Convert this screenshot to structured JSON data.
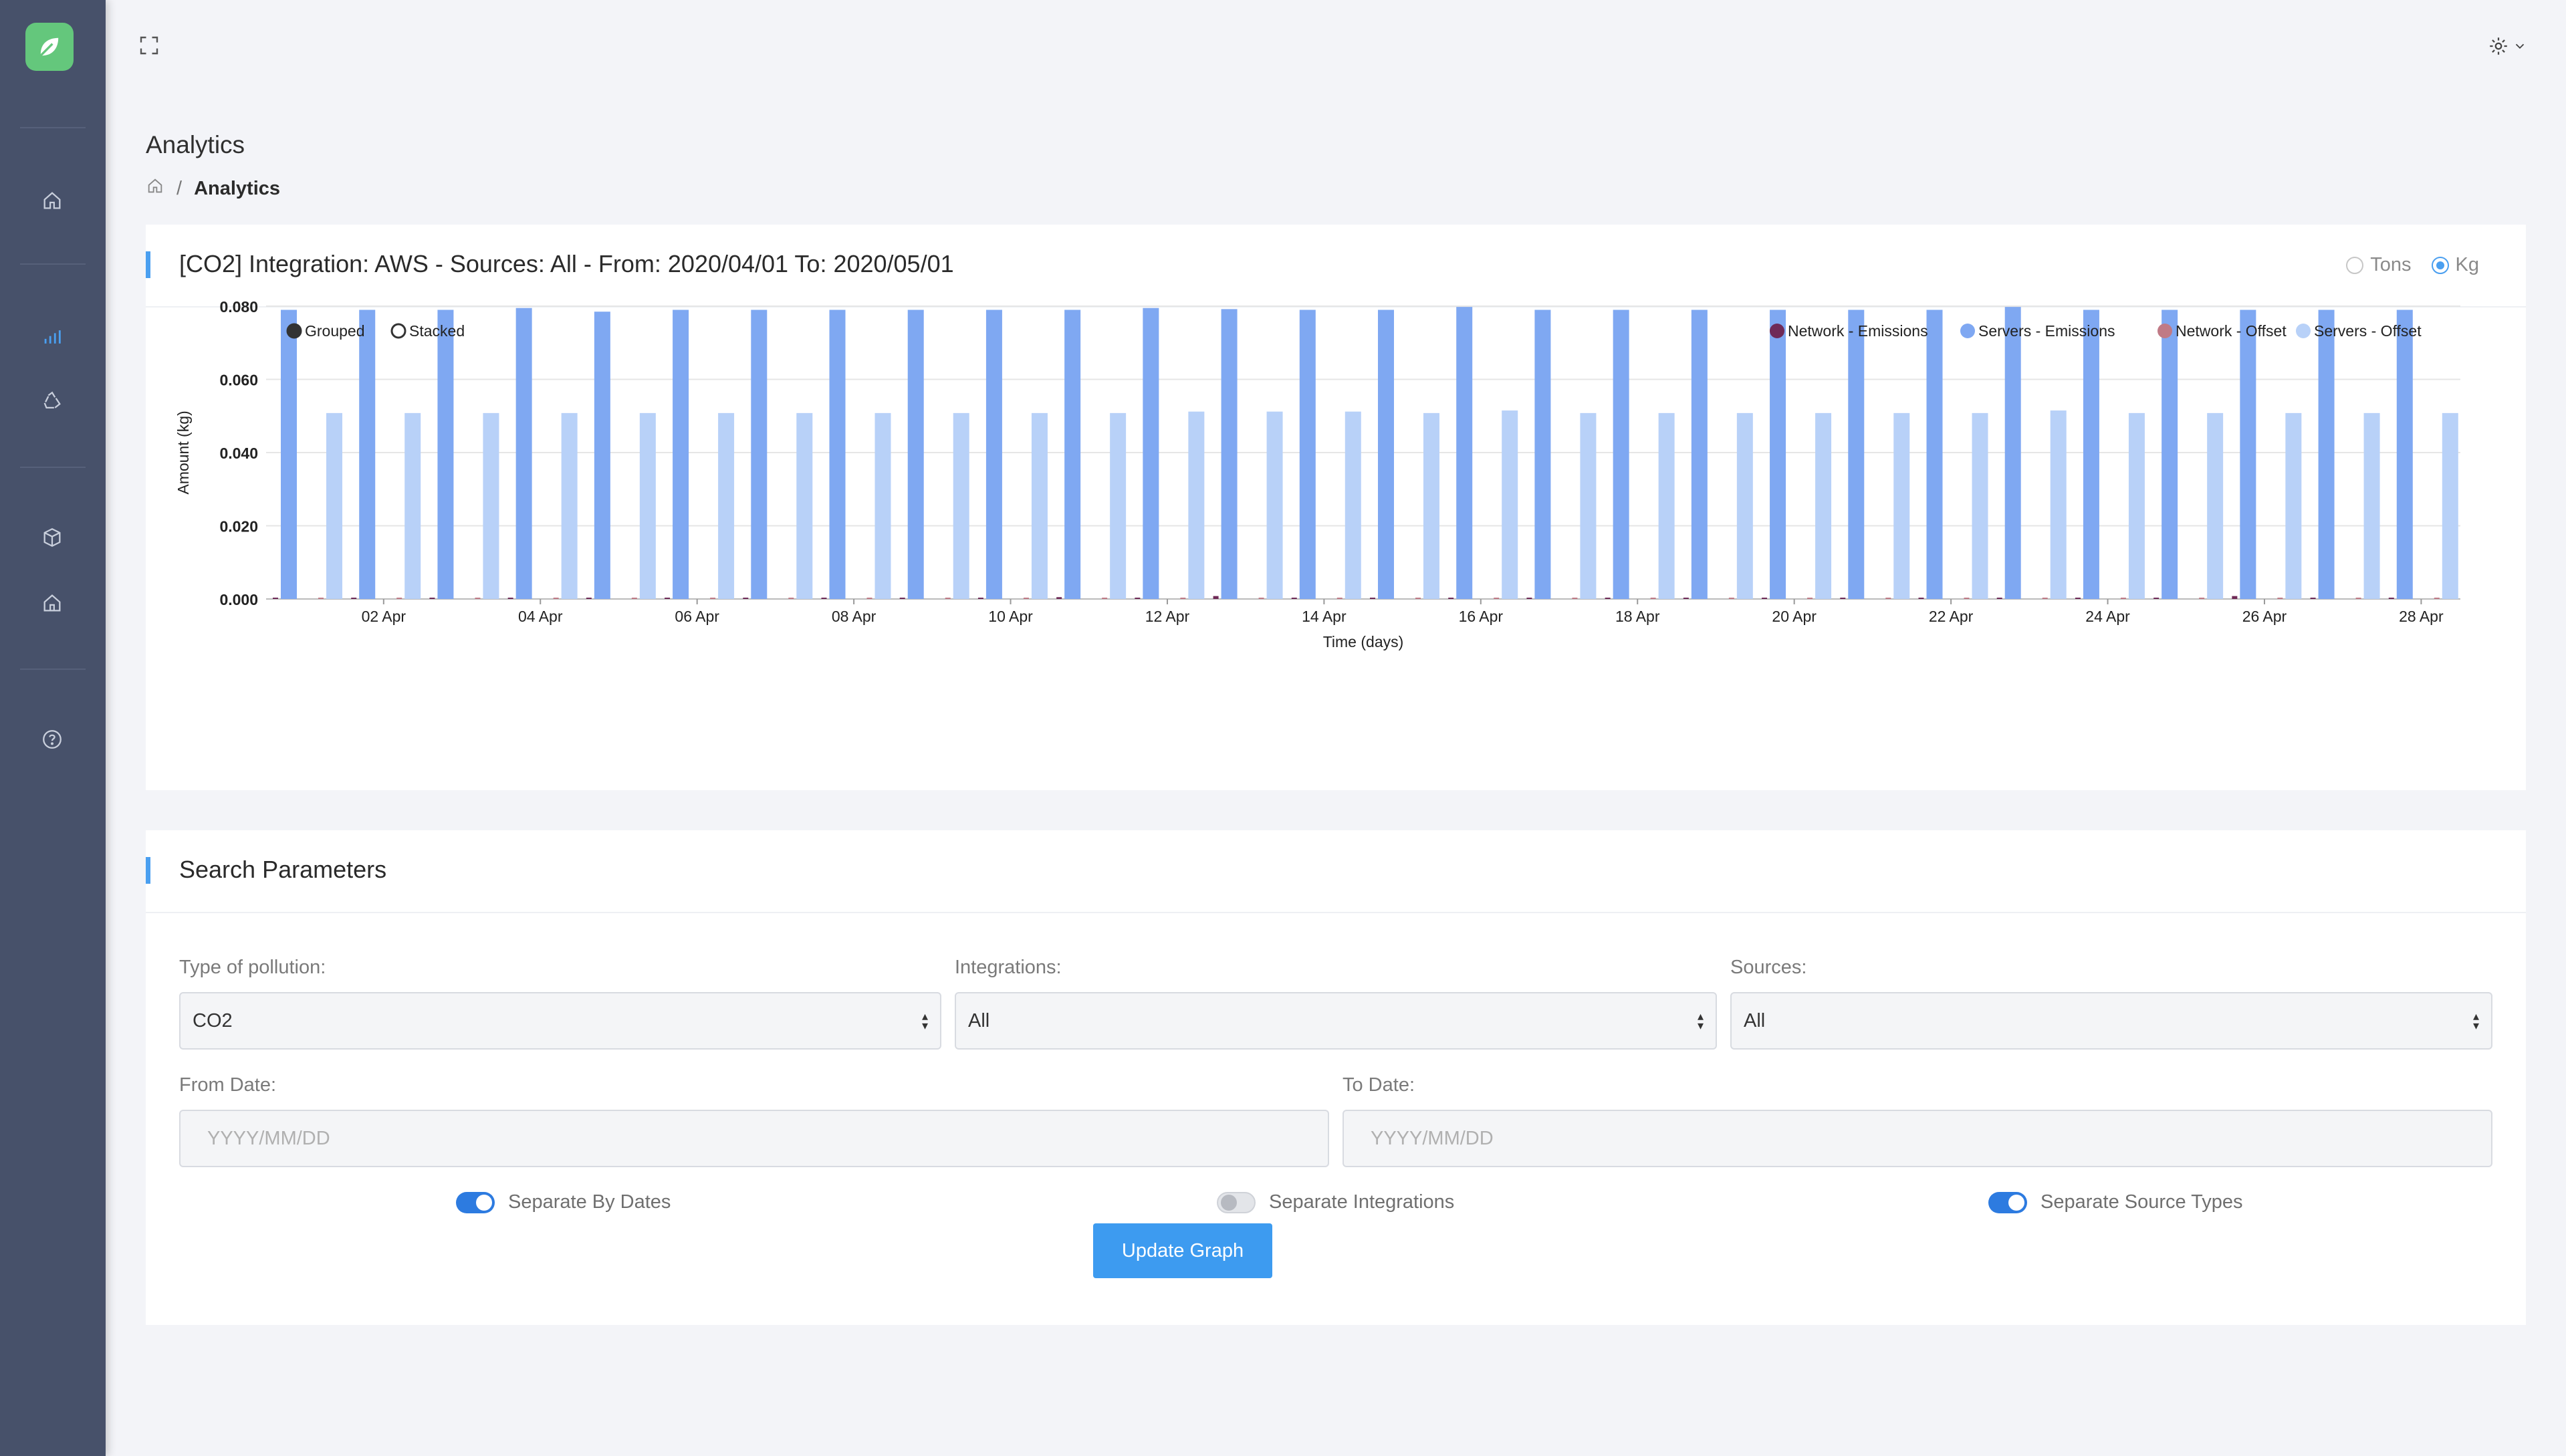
{
  "colors": {
    "sidebar_bg": "#47516a",
    "accent": "#4a9ff0",
    "logo": "#64c77c",
    "network_emissions": "#6f2a57",
    "servers_emissions": "#7fa8f2",
    "network_offset": "#c07a86",
    "servers_offset": "#b8d1f8"
  },
  "sidebar": {
    "items": [
      {
        "icon": "home-icon"
      },
      {
        "icon": "bar-chart-icon",
        "active": true
      },
      {
        "icon": "recycle-icon"
      },
      {
        "icon": "cube-icon"
      },
      {
        "icon": "building-icon"
      },
      {
        "icon": "help-icon"
      }
    ]
  },
  "header": {
    "page_title": "Analytics",
    "breadcrumb_current": "Analytics",
    "breadcrumb_separator": "/"
  },
  "chart_card": {
    "title": "[CO2] Integration: AWS - Sources: All - From: 2020/04/01 To: 2020/05/01",
    "units": [
      {
        "label": "Tons",
        "selected": false
      },
      {
        "label": "Kg",
        "selected": true
      }
    ],
    "modes": [
      {
        "label": "Grouped",
        "selected": true
      },
      {
        "label": "Stacked",
        "selected": false
      }
    ]
  },
  "chart_data": {
    "type": "bar",
    "xlabel": "Time (days)",
    "ylabel": "Amount (kg)",
    "ylim": [
      0,
      0.08
    ],
    "yticks": [
      "0.000",
      "0.020",
      "0.040",
      "0.060",
      "0.080"
    ],
    "xtick_labels": [
      "02 Apr",
      "04 Apr",
      "06 Apr",
      "08 Apr",
      "10 Apr",
      "12 Apr",
      "14 Apr",
      "16 Apr",
      "18 Apr",
      "20 Apr",
      "22 Apr",
      "24 Apr",
      "26 Apr",
      "28 Apr"
    ],
    "grid": true,
    "legend_position": "top-right",
    "categories": [
      "01 Apr",
      "02 Apr",
      "03 Apr",
      "04 Apr",
      "05 Apr",
      "06 Apr",
      "07 Apr",
      "08 Apr",
      "09 Apr",
      "10 Apr",
      "11 Apr",
      "12 Apr",
      "13 Apr",
      "14 Apr",
      "15 Apr",
      "16 Apr",
      "17 Apr",
      "18 Apr",
      "19 Apr",
      "20 Apr",
      "21 Apr",
      "22 Apr",
      "23 Apr",
      "24 Apr",
      "25 Apr",
      "26 Apr",
      "27 Apr",
      "28 Apr"
    ],
    "series": [
      {
        "name": "Network - Emissions",
        "color": "#6f2a57",
        "values": [
          0.0003,
          0.0003,
          0.0003,
          0.0003,
          0.0003,
          0.0003,
          0.0003,
          0.0003,
          0.0003,
          0.0003,
          0.0005,
          0.0003,
          0.0008,
          0.0003,
          0.0003,
          0.0003,
          0.0003,
          0.0003,
          0.0003,
          0.0003,
          0.0003,
          0.0003,
          0.0003,
          0.0003,
          0.0003,
          0.0008,
          0.0003,
          0.0003
        ]
      },
      {
        "name": "Servers - Emissions",
        "color": "#7fa8f2",
        "values": [
          0.079,
          0.079,
          0.079,
          0.0795,
          0.0785,
          0.079,
          0.079,
          0.079,
          0.079,
          0.079,
          0.079,
          0.0795,
          0.0792,
          0.079,
          0.079,
          0.0798,
          0.079,
          0.079,
          0.079,
          0.079,
          0.079,
          0.079,
          0.0798,
          0.079,
          0.079,
          0.079,
          0.079,
          0.079
        ]
      },
      {
        "name": "Network - Offset",
        "color": "#c07a86",
        "values": [
          0.0002,
          0.0002,
          0.0002,
          0.0002,
          0.0002,
          0.0002,
          0.0002,
          0.0002,
          0.0002,
          0.0002,
          0.0002,
          0.0002,
          0.0002,
          0.0002,
          0.0002,
          0.0002,
          0.0002,
          0.0002,
          0.0002,
          0.0002,
          0.0002,
          0.0002,
          0.0002,
          0.0002,
          0.0002,
          0.0002,
          0.0002,
          0.0002
        ]
      },
      {
        "name": "Servers - Offset",
        "color": "#b8d1f8",
        "values": [
          0.0508,
          0.0508,
          0.0508,
          0.0508,
          0.0508,
          0.0508,
          0.0508,
          0.0508,
          0.0508,
          0.0508,
          0.0508,
          0.0512,
          0.0512,
          0.0512,
          0.0508,
          0.0515,
          0.0508,
          0.0508,
          0.0508,
          0.0508,
          0.0508,
          0.0508,
          0.0515,
          0.0508,
          0.0508,
          0.0508,
          0.0508,
          0.0508
        ]
      }
    ]
  },
  "search": {
    "title": "Search Parameters",
    "pollution_label": "Type of pollution:",
    "pollution_value": "CO2",
    "integrations_label": "Integrations:",
    "integrations_value": "All",
    "sources_label": "Sources:",
    "sources_value": "All",
    "from_label": "From Date:",
    "from_placeholder": "YYYY/MM/DD",
    "to_label": "To Date:",
    "to_placeholder": "YYYY/MM/DD",
    "toggles": [
      {
        "label": "Separate By Dates",
        "on": true
      },
      {
        "label": "Separate Integrations",
        "on": false
      },
      {
        "label": "Separate Source Types",
        "on": true
      }
    ],
    "update_label": "Update Graph"
  }
}
